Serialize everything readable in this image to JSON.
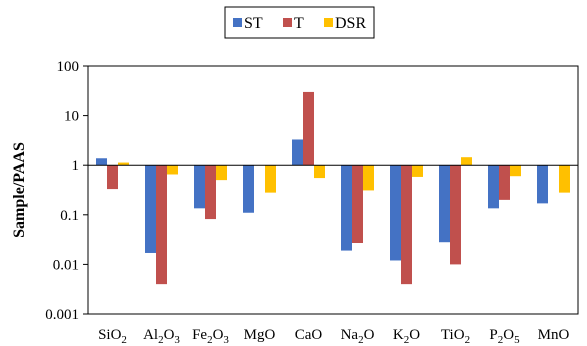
{
  "chart_data": {
    "type": "bar",
    "ylabel": "Sample/PAAS",
    "yscale": "log",
    "ylim": [
      0.001,
      100
    ],
    "yticks": [
      "0.001",
      "0.01",
      "0.1",
      "1",
      "10",
      "100"
    ],
    "baseline": 1,
    "legend_position": "top",
    "categories": [
      {
        "base": "SiO",
        "sub": "2",
        "tail": ""
      },
      {
        "base": "Al",
        "sub": "2",
        "tail": "O",
        "sub2": "3"
      },
      {
        "base": "Fe",
        "sub": "2",
        "tail": "O",
        "sub2": "3"
      },
      {
        "base": "MgO",
        "sub": "",
        "tail": ""
      },
      {
        "base": "CaO",
        "sub": "",
        "tail": ""
      },
      {
        "base": "Na",
        "sub": "2",
        "tail": "O"
      },
      {
        "base": "K",
        "sub": "2",
        "tail": "O"
      },
      {
        "base": "TiO",
        "sub": "2",
        "tail": ""
      },
      {
        "base": "P",
        "sub": "2",
        "tail": "O",
        "sub2": "5"
      },
      {
        "base": "MnO",
        "sub": "",
        "tail": ""
      }
    ],
    "series": [
      {
        "name": "ST",
        "color": "#4472C4",
        "values": [
          1.38,
          0.017,
          0.135,
          0.11,
          3.3,
          0.019,
          0.012,
          0.028,
          0.135,
          0.17
        ]
      },
      {
        "name": "T",
        "color": "#C0504D",
        "values": [
          0.33,
          0.004,
          0.082,
          null,
          30,
          0.027,
          0.004,
          0.01,
          0.2,
          null
        ]
      },
      {
        "name": "DSR",
        "color": "#FFC000",
        "values": [
          1.13,
          0.65,
          0.5,
          0.28,
          0.55,
          0.31,
          0.58,
          1.45,
          0.6,
          0.28
        ]
      }
    ]
  }
}
